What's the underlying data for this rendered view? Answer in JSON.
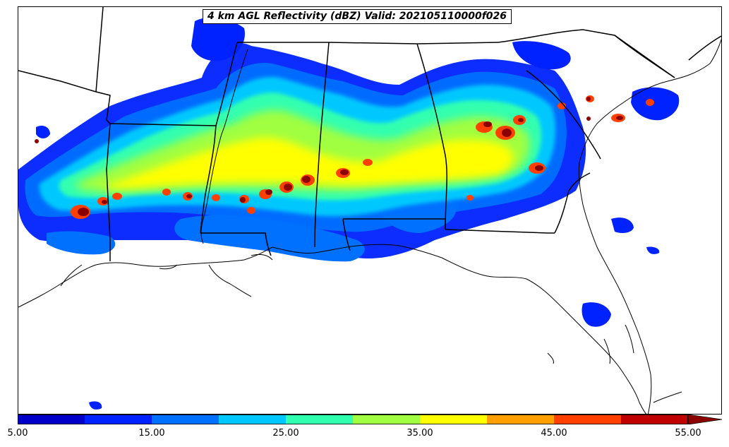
{
  "title": "4 km AGL Reflectivity (dBZ) Valid: 202105110000f026",
  "colorbar": {
    "tick_labels": [
      "5.00",
      "15.00",
      "25.00",
      "35.00",
      "45.00",
      "55.00"
    ],
    "tick_values": [
      5,
      15,
      25,
      35,
      45,
      55
    ],
    "min": 5,
    "max": 55,
    "extend": "max",
    "colors": [
      "#0000c8",
      "#0022ff",
      "#0070ff",
      "#00c8ff",
      "#30ffb0",
      "#a0ff40",
      "#ffff00",
      "#ffa000",
      "#ff4000",
      "#c00000",
      "#8b0000"
    ]
  },
  "map": {
    "region": "Southeastern United States",
    "colors": {
      "state_lines": "#000000",
      "coastline": "#000000",
      "background": "#ffffff"
    }
  }
}
